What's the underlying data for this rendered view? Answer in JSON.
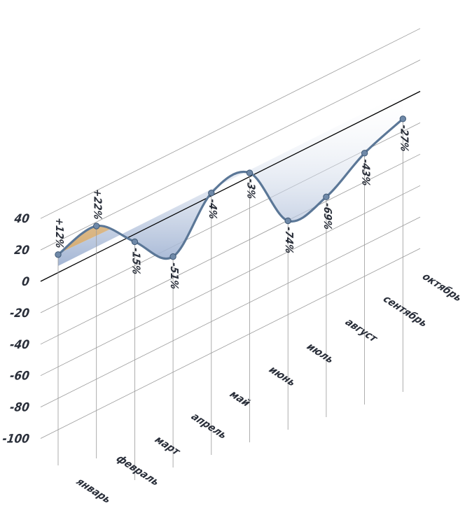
{
  "chart_data": {
    "type": "area",
    "categories": [
      "январь",
      "февраль",
      "март",
      "апрель",
      "май",
      "июнь",
      "июль",
      "август",
      "сентябрь",
      "октябрь"
    ],
    "values": [
      12,
      22,
      -15,
      -51,
      -4,
      -3,
      -74,
      -69,
      -43,
      -27
    ],
    "value_labels": [
      "+12%",
      "+22%",
      "-15%",
      "-51%",
      "-4%",
      "-3%",
      "-74%",
      "-69%",
      "-43%",
      "-27%"
    ],
    "yticks": [
      "40",
      "20",
      "0",
      "-20",
      "-40",
      "-60",
      "-80",
      "-100"
    ],
    "ylim": [
      -100,
      40
    ],
    "grid": true,
    "colors": {
      "line": "#5b7797",
      "marker_fill": "#6f89a8",
      "positive_fill": "#cfa160",
      "negative_fill": "#aebfda",
      "grid": "#9a9a9a",
      "zero_line": "#000000"
    }
  }
}
